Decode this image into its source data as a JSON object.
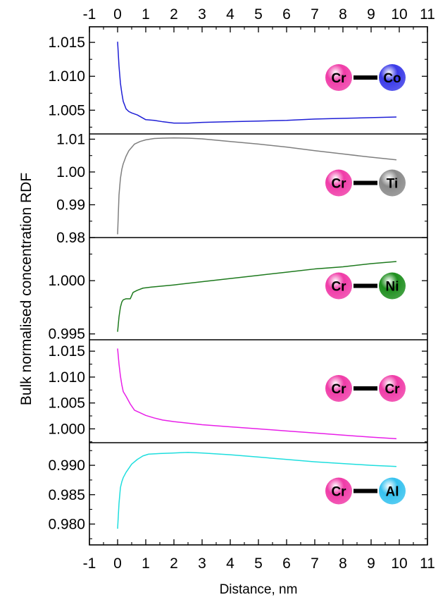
{
  "chart_data": {
    "type": "line",
    "xlabel": "Distance, nm",
    "ylabel": "Bulk normalised concentration RDF",
    "xlim": [
      -1,
      11
    ],
    "xticks": [
      "-1",
      "0",
      "1",
      "2",
      "3",
      "4",
      "5",
      "6",
      "7",
      "8",
      "9",
      "10",
      "11"
    ],
    "x_axis_top": true,
    "grid": false,
    "panels": [
      {
        "name": "Cr-Co",
        "color": "#1f1fd6",
        "ylim": [
          1.0015,
          1.0173
        ],
        "yticks": [
          {
            "value": 1.015,
            "label": "1.015"
          },
          {
            "value": 1.01,
            "label": "1.010"
          },
          {
            "value": 1.005,
            "label": "1.005"
          }
        ],
        "pair": {
          "left": {
            "label": "Cr",
            "color": "#f03ca8"
          },
          "right": {
            "label": "Co",
            "color": "#3a3ae8"
          }
        },
        "x": [
          0.0,
          0.05,
          0.1,
          0.15,
          0.2,
          0.3,
          0.4,
          0.5,
          0.7,
          1.0,
          1.3,
          1.6,
          2.0,
          2.5,
          3.0,
          4.0,
          5.0,
          6.0,
          7.0,
          8.0,
          9.0,
          9.9
        ],
        "y": [
          1.0151,
          1.0115,
          1.009,
          1.0075,
          1.0063,
          1.0052,
          1.0048,
          1.0046,
          1.0043,
          1.0036,
          1.0035,
          1.0033,
          1.0031,
          1.0031,
          1.0032,
          1.0033,
          1.0034,
          1.0035,
          1.0037,
          1.0038,
          1.0039,
          1.004
        ]
      },
      {
        "name": "Cr-Ti",
        "color": "#7f7f7f",
        "ylim": [
          0.98,
          1.0116
        ],
        "yticks": [
          {
            "value": 1.01,
            "label": "1.01"
          },
          {
            "value": 1.0,
            "label": "1.00"
          },
          {
            "value": 0.99,
            "label": "0.99"
          },
          {
            "value": 0.98,
            "label": "0.98"
          }
        ],
        "pair": {
          "left": {
            "label": "Cr",
            "color": "#f03ca8"
          },
          "right": {
            "label": "Ti",
            "color": "#8a8a8a"
          }
        },
        "x": [
          0.0,
          0.05,
          0.1,
          0.15,
          0.2,
          0.3,
          0.4,
          0.6,
          0.8,
          1.0,
          1.3,
          1.6,
          2.0,
          2.5,
          3.0,
          3.5,
          4.0,
          5.0,
          6.0,
          7.0,
          8.0,
          9.0,
          9.9
        ],
        "y": [
          0.981,
          0.993,
          0.998,
          1.0008,
          1.0025,
          1.0048,
          1.0065,
          1.0085,
          1.0093,
          1.0098,
          1.0102,
          1.0103,
          1.0104,
          1.0103,
          1.0101,
          1.0097,
          1.0093,
          1.0085,
          1.0076,
          1.0065,
          1.0055,
          1.0045,
          1.0037
        ]
      },
      {
        "name": "Cr-Ni",
        "color": "#1e7a1e",
        "ylim": [
          0.99445,
          1.00405
        ],
        "yticks": [
          {
            "value": 1.0,
            "label": "1.000"
          },
          {
            "value": 0.995,
            "label": "0.995"
          }
        ],
        "pair": {
          "left": {
            "label": "Cr",
            "color": "#f03ca8"
          },
          "right": {
            "label": "Ni",
            "color": "#1f8f1f"
          }
        },
        "x": [
          0.0,
          0.05,
          0.1,
          0.15,
          0.2,
          0.3,
          0.45,
          0.55,
          0.7,
          0.9,
          1.2,
          1.6,
          2.0,
          3.0,
          4.0,
          5.0,
          6.0,
          7.0,
          8.0,
          9.0,
          9.9
        ],
        "y": [
          0.9952,
          0.9966,
          0.9975,
          0.998,
          0.9982,
          0.9983,
          0.9983,
          0.9989,
          0.9991,
          0.9993,
          0.9994,
          0.9995,
          0.9996,
          0.9999,
          1.0002,
          1.0005,
          1.0008,
          1.0011,
          1.0013,
          1.0016,
          1.0018
        ]
      },
      {
        "name": "Cr-Cr",
        "color": "#e81fe8",
        "ylim": [
          0.99733,
          1.0172
        ],
        "yticks": [
          {
            "value": 1.015,
            "label": "1.015"
          },
          {
            "value": 1.01,
            "label": "1.010"
          },
          {
            "value": 1.005,
            "label": "1.005"
          },
          {
            "value": 1.0,
            "label": "1.000"
          }
        ],
        "pair": {
          "left": {
            "label": "Cr",
            "color": "#f03ca8"
          },
          "right": {
            "label": "Cr",
            "color": "#f03ca8"
          }
        },
        "x": [
          0.0,
          0.05,
          0.1,
          0.15,
          0.2,
          0.3,
          0.45,
          0.6,
          0.8,
          1.0,
          1.3,
          1.6,
          2.0,
          3.0,
          4.0,
          5.0,
          6.0,
          7.0,
          8.0,
          9.0,
          9.9
        ],
        "y": [
          1.0155,
          1.0125,
          1.0102,
          1.0085,
          1.0072,
          1.0063,
          1.0048,
          1.0036,
          1.0031,
          1.0026,
          1.0021,
          1.0017,
          1.0014,
          1.0008,
          1.0004,
          1.0,
          0.9996,
          0.9992,
          0.9988,
          0.9984,
          0.9981
        ]
      },
      {
        "name": "Cr-Al",
        "color": "#1fdede",
        "ylim": [
          0.97645,
          0.99385
        ],
        "yticks": [
          {
            "value": 0.99,
            "label": "0.990"
          },
          {
            "value": 0.985,
            "label": "0.985"
          },
          {
            "value": 0.98,
            "label": "0.980"
          }
        ],
        "pair": {
          "left": {
            "label": "Cr",
            "color": "#f03ca8"
          },
          "right": {
            "label": "Al",
            "color": "#36c2ef"
          }
        },
        "x": [
          0.0,
          0.05,
          0.1,
          0.15,
          0.2,
          0.3,
          0.5,
          0.7,
          0.9,
          1.1,
          1.5,
          2.0,
          2.5,
          3.0,
          4.0,
          5.0,
          6.0,
          7.0,
          8.0,
          9.0,
          9.9
        ],
        "y": [
          0.9792,
          0.9835,
          0.9862,
          0.9872,
          0.9879,
          0.9888,
          0.9902,
          0.991,
          0.9916,
          0.9919,
          0.992,
          0.9921,
          0.9922,
          0.9921,
          0.9918,
          0.9914,
          0.991,
          0.9906,
          0.9903,
          0.99,
          0.9898
        ]
      }
    ]
  }
}
